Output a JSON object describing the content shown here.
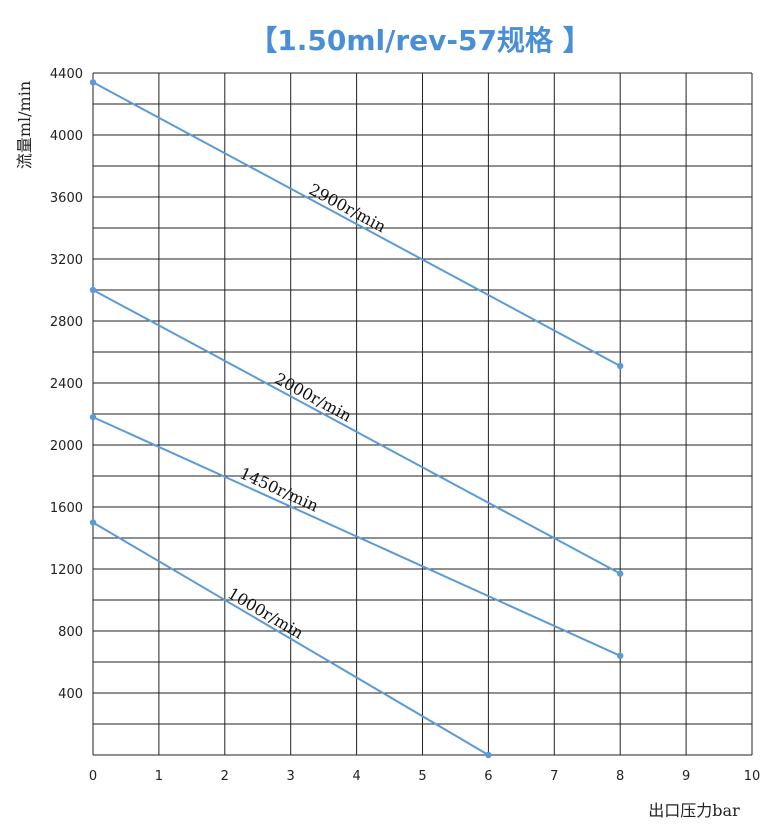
{
  "chart_data": {
    "type": "line",
    "title": "【1.50ml/rev-57规格 】",
    "xlabel": "出口压力bar",
    "ylabel": "流量ml/min",
    "xlim": [
      0,
      10
    ],
    "ylim": [
      0,
      4400
    ],
    "x_ticks": [
      "0",
      "1",
      "2",
      "3",
      "4",
      "5",
      "6",
      "7",
      "8",
      "9",
      "10"
    ],
    "y_ticks": [
      "400",
      "800",
      "1200",
      "1600",
      "2000",
      "2400",
      "2800",
      "3200",
      "3600",
      "4000",
      "4400"
    ],
    "grid": true,
    "series": [
      {
        "name": "2900r/min",
        "x": [
          0,
          8
        ],
        "y": [
          4340,
          2510
        ]
      },
      {
        "name": "2000r/min",
        "x": [
          0,
          8
        ],
        "y": [
          3000,
          1170
        ]
      },
      {
        "name": "1450r/min",
        "x": [
          0,
          8
        ],
        "y": [
          2180,
          640
        ]
      },
      {
        "name": "1000r/min",
        "x": [
          0,
          6
        ],
        "y": [
          1500,
          0
        ]
      }
    ],
    "colors": {
      "title": "#4a8fd6",
      "line": "#5b9bd5",
      "grid": "#222222"
    }
  }
}
